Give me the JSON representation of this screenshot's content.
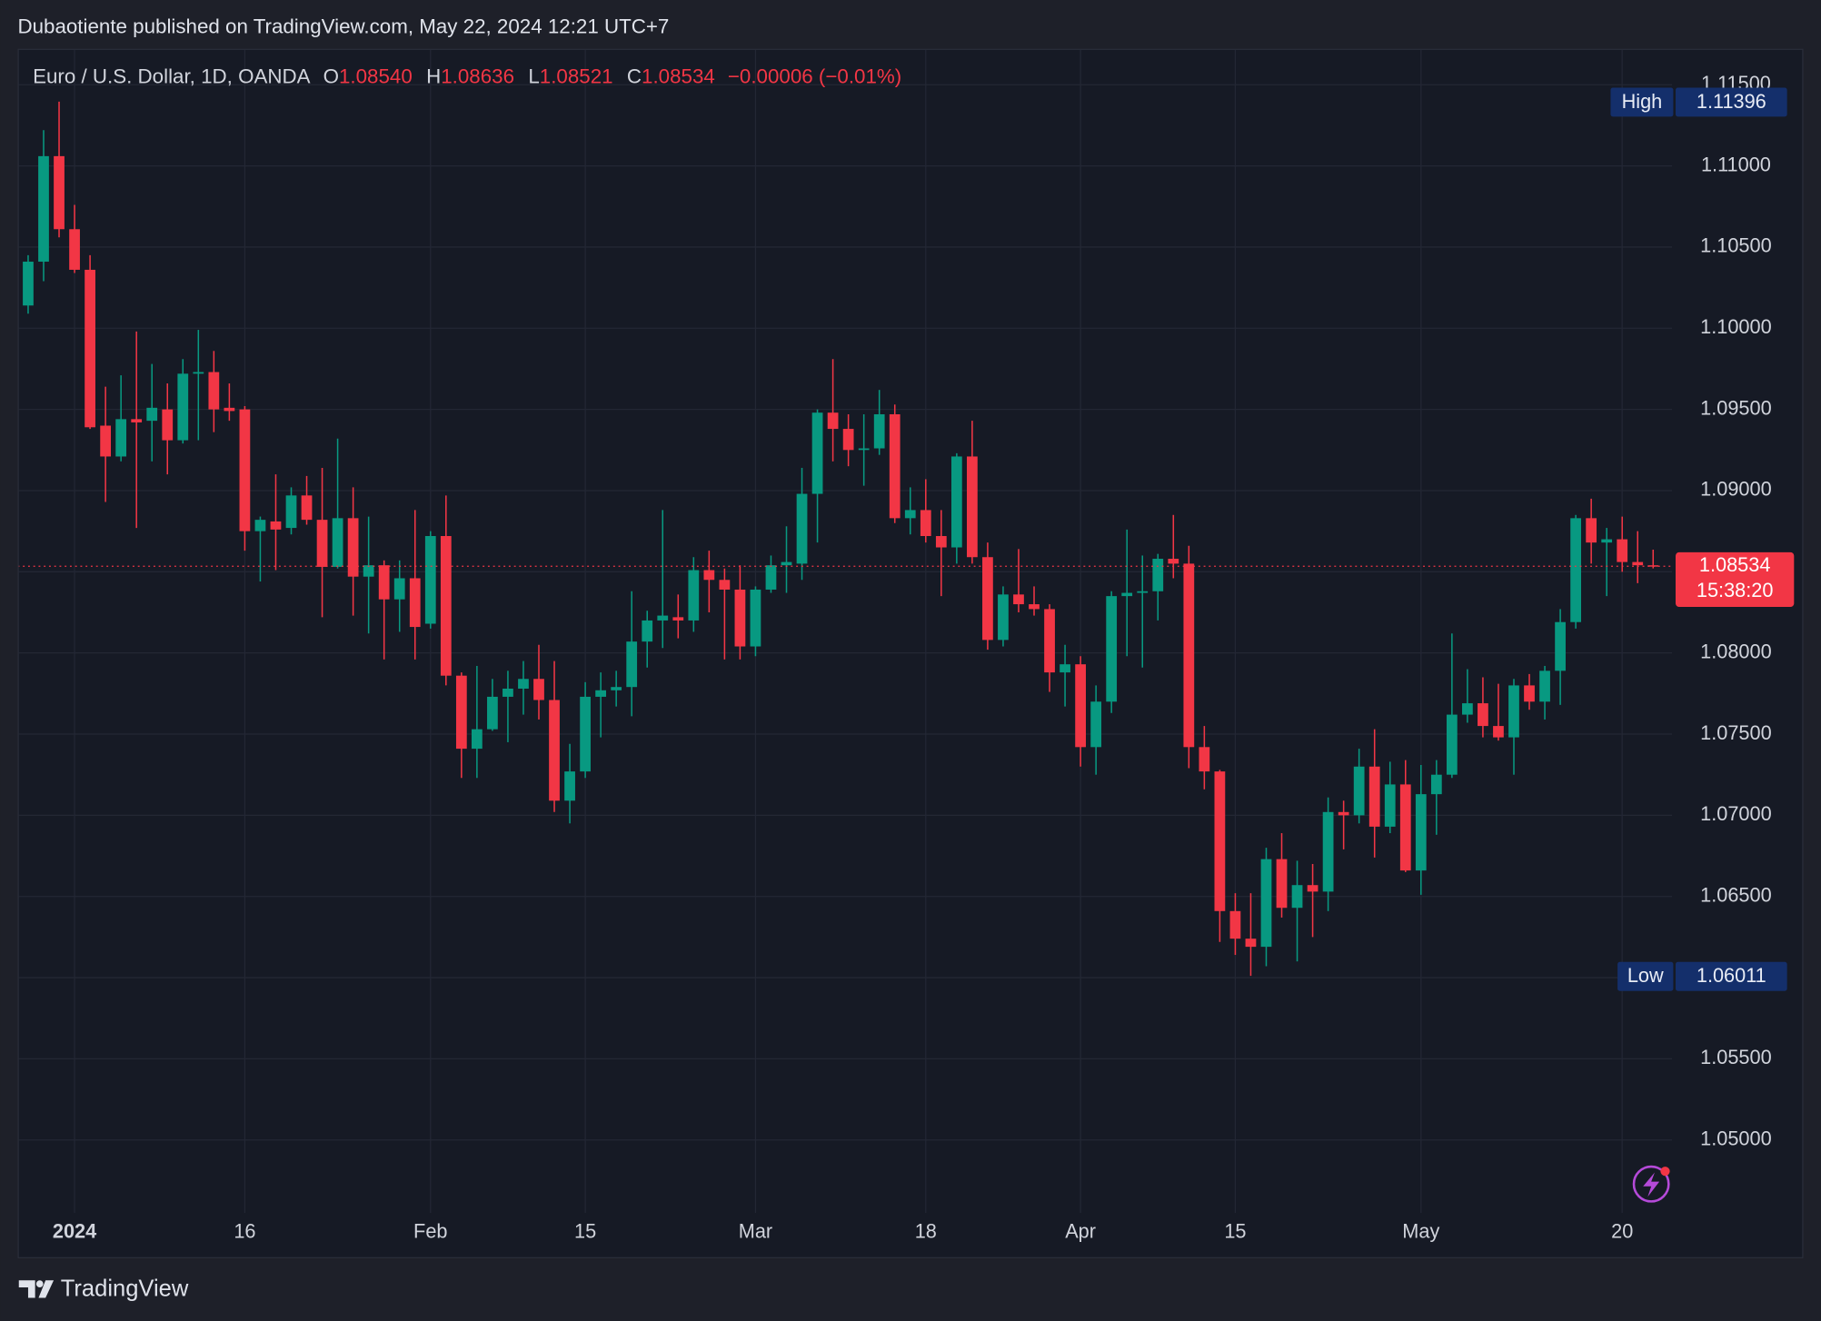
{
  "chart_data": {
    "type": "candlestick",
    "title": "Dubaotiente published on TradingView.com, May 22, 2024 12:21 UTC+7",
    "legend": {
      "symbol": "Euro / U.S. Dollar, 1D, OANDA",
      "items": [
        {
          "key": "O",
          "value": "1.08540"
        },
        {
          "key": "H",
          "value": "1.08636"
        },
        {
          "key": "L",
          "value": "1.08521"
        },
        {
          "key": "C",
          "value": "1.08534"
        }
      ],
      "change": "−0.00006 (−0.01%)"
    },
    "up_color": "#089981",
    "down_color": "#f23645",
    "grid": true,
    "categories": [
      null,
      null,
      null,
      "2024",
      null,
      null,
      null,
      null,
      null,
      null,
      null,
      null,
      null,
      null,
      "16",
      null,
      null,
      null,
      null,
      null,
      null,
      null,
      null,
      null,
      null,
      null,
      "Feb",
      null,
      null,
      null,
      null,
      null,
      null,
      null,
      null,
      null,
      "15",
      null,
      null,
      null,
      null,
      null,
      null,
      null,
      null,
      null,
      null,
      "Mar",
      null,
      null,
      null,
      null,
      null,
      null,
      null,
      null,
      null,
      null,
      "18",
      null,
      null,
      null,
      null,
      null,
      null,
      null,
      null,
      null,
      "Apr",
      null,
      null,
      null,
      null,
      null,
      null,
      null,
      null,
      null,
      "15",
      null,
      null,
      null,
      null,
      null,
      null,
      null,
      null,
      null,
      null,
      null,
      "May",
      null,
      null,
      null,
      null,
      null,
      null,
      null,
      null,
      null,
      null,
      null,
      null,
      "20",
      null,
      null
    ],
    "open": [
      1.1014,
      1.1041,
      1.1106,
      1.1061,
      1.1036,
      1.094,
      1.0921,
      1.0944,
      1.0943,
      1.095,
      1.0931,
      1.0972,
      1.0973,
      1.0951,
      1.095,
      1.0875,
      1.0881,
      1.0877,
      1.0897,
      1.0882,
      1.0853,
      1.0883,
      1.0847,
      1.0854,
      1.0833,
      1.0846,
      1.0818,
      1.0872,
      1.0786,
      1.0741,
      1.0753,
      1.0773,
      1.0778,
      1.0784,
      1.0771,
      1.0709,
      1.0727,
      1.0773,
      1.0777,
      1.0779,
      1.0807,
      1.082,
      1.0822,
      1.082,
      1.0851,
      1.0845,
      1.0839,
      1.0804,
      1.0839,
      1.0854,
      1.0855,
      1.0898,
      1.0948,
      1.0938,
      1.0925,
      1.0926,
      1.0947,
      1.0883,
      1.0888,
      1.0872,
      1.0865,
      1.0921,
      1.0859,
      1.0808,
      1.0836,
      1.083,
      1.0827,
      1.0788,
      1.0793,
      1.0742,
      1.077,
      1.0835,
      1.0837,
      1.0838,
      1.0858,
      1.0855,
      1.0742,
      1.0727,
      1.0641,
      1.0624,
      1.0619,
      1.0673,
      1.0643,
      1.0657,
      1.0653,
      1.0702,
      1.07,
      1.073,
      1.0693,
      1.0719,
      1.0666,
      1.0713,
      1.0725,
      1.0762,
      1.0769,
      1.0755,
      1.0748,
      1.078,
      1.077,
      1.0789,
      1.0819,
      1.0883,
      1.0868,
      1.087,
      1.0856,
      1.0854
    ],
    "high": [
      1.1045,
      1.1122,
      1.11396,
      1.1076,
      1.1045,
      1.0964,
      1.0971,
      1.0998,
      1.0978,
      1.0966,
      1.0981,
      1.0999,
      1.0986,
      1.0966,
      1.0952,
      1.0884,
      1.091,
      1.0902,
      1.0909,
      1.0914,
      1.0932,
      1.0902,
      1.0884,
      1.0857,
      1.0857,
      1.0888,
      1.0875,
      1.0897,
      1.0788,
      1.0792,
      1.0784,
      1.0789,
      1.0795,
      1.0805,
      1.0795,
      1.0744,
      1.0782,
      1.0788,
      1.0789,
      1.0838,
      1.0826,
      1.0888,
      1.0836,
      1.0859,
      1.0863,
      1.0852,
      1.0854,
      1.0841,
      1.086,
      1.0878,
      1.0914,
      1.095,
      1.0981,
      1.0947,
      1.0947,
      1.0962,
      1.0953,
      1.0902,
      1.0907,
      1.0888,
      1.0923,
      1.0943,
      1.0868,
      1.0841,
      1.0864,
      1.0841,
      1.083,
      1.0805,
      1.0798,
      1.078,
      1.0838,
      1.0876,
      1.086,
      1.0861,
      1.0885,
      1.0866,
      1.0755,
      1.0728,
      1.0652,
      1.0652,
      1.068,
      1.0689,
      1.0672,
      1.067,
      1.0711,
      1.0709,
      1.0741,
      1.0753,
      1.0733,
      1.0734,
      1.0731,
      1.0734,
      1.0812,
      1.079,
      1.0785,
      1.0781,
      1.0784,
      1.0787,
      1.0792,
      1.0827,
      1.0885,
      1.0895,
      1.0877,
      1.0884,
      1.0875,
      1.08636
    ],
    "low": [
      1.1009,
      1.1029,
      1.1056,
      1.1034,
      1.0938,
      1.0893,
      1.0918,
      1.0877,
      1.0918,
      1.091,
      1.0929,
      1.0931,
      1.0936,
      1.0943,
      1.0863,
      1.0844,
      1.0851,
      1.0873,
      1.0879,
      1.0822,
      1.0852,
      1.0823,
      1.0812,
      1.0796,
      1.0813,
      1.0796,
      1.0815,
      1.078,
      1.0723,
      1.0723,
      1.0752,
      1.0745,
      1.0762,
      1.0759,
      1.0702,
      1.0695,
      1.0723,
      1.0748,
      1.0767,
      1.0761,
      1.0791,
      1.0803,
      1.0809,
      1.0813,
      1.0825,
      1.0796,
      1.0796,
      1.0798,
      1.0837,
      1.0837,
      1.0845,
      1.0868,
      1.0918,
      1.0915,
      1.0903,
      1.0922,
      1.088,
      1.0873,
      1.0868,
      1.0835,
      1.0855,
      1.0855,
      1.0802,
      1.0804,
      1.0825,
      1.0823,
      1.0776,
      1.0767,
      1.073,
      1.0725,
      1.0763,
      1.0798,
      1.0791,
      1.082,
      1.0846,
      1.0729,
      1.0716,
      1.0622,
      1.0614,
      1.06011,
      1.0607,
      1.0637,
      1.061,
      1.0625,
      1.0641,
      1.0679,
      1.0695,
      1.0674,
      1.0689,
      1.0665,
      1.0651,
      1.0688,
      1.0723,
      1.0757,
      1.0748,
      1.0746,
      1.0725,
      1.0765,
      1.0759,
      1.0768,
      1.0815,
      1.0855,
      1.0835,
      1.085,
      1.0843,
      1.08521
    ],
    "close": [
      1.1041,
      1.1106,
      1.1061,
      1.1036,
      1.0939,
      1.0921,
      1.0944,
      1.0942,
      1.0951,
      1.0931,
      1.0972,
      1.0973,
      1.095,
      1.0949,
      1.0875,
      1.0882,
      1.0876,
      1.0897,
      1.0882,
      1.0853,
      1.0883,
      1.0847,
      1.0854,
      1.0833,
      1.0846,
      1.0816,
      1.0872,
      1.0786,
      1.0741,
      1.0753,
      1.0773,
      1.0778,
      1.0784,
      1.0771,
      1.0709,
      1.0727,
      1.0773,
      1.0777,
      1.0779,
      1.0807,
      1.082,
      1.0823,
      1.082,
      1.0851,
      1.0845,
      1.0839,
      1.0804,
      1.0839,
      1.0854,
      1.0856,
      1.0898,
      1.0948,
      1.0938,
      1.0925,
      1.0926,
      1.0947,
      1.0883,
      1.0888,
      1.0872,
      1.0865,
      1.0921,
      1.0859,
      1.0808,
      1.0836,
      1.083,
      1.0827,
      1.0788,
      1.0793,
      1.0742,
      1.077,
      1.0835,
      1.0837,
      1.0838,
      1.0858,
      1.0855,
      1.0742,
      1.0727,
      1.0641,
      1.0624,
      1.0619,
      1.0673,
      1.0643,
      1.0657,
      1.0653,
      1.0702,
      1.07,
      1.073,
      1.0693,
      1.0719,
      1.0666,
      1.0713,
      1.0725,
      1.0762,
      1.0769,
      1.0755,
      1.0748,
      1.078,
      1.077,
      1.0789,
      1.0819,
      1.0883,
      1.0868,
      1.087,
      1.0856,
      1.0854,
      1.08534
    ],
    "ylim": [
      1.0455,
      1.117
    ],
    "yticks": [
      {
        "value": 1.05,
        "label": "1.05000"
      },
      {
        "value": 1.055,
        "label": "1.05500"
      },
      {
        "value": 1.06,
        "label": "1.06000"
      },
      {
        "value": 1.065,
        "label": "1.06500"
      },
      {
        "value": 1.07,
        "label": "1.07000"
      },
      {
        "value": 1.075,
        "label": "1.07500"
      },
      {
        "value": 1.08,
        "label": "1.08000"
      },
      {
        "value": 1.085,
        "label": "1.08500"
      },
      {
        "value": 1.09,
        "label": "1.09000"
      },
      {
        "value": 1.095,
        "label": "1.09500"
      },
      {
        "value": 1.1,
        "label": "1.10000"
      },
      {
        "value": 1.105,
        "label": "1.10500"
      },
      {
        "value": 1.11,
        "label": "1.11000"
      },
      {
        "value": 1.115,
        "label": "1.11500"
      }
    ],
    "high_label": "High",
    "low_label": "Low",
    "countdown": "15:38:20"
  },
  "footer": {
    "brand": "TradingView"
  }
}
